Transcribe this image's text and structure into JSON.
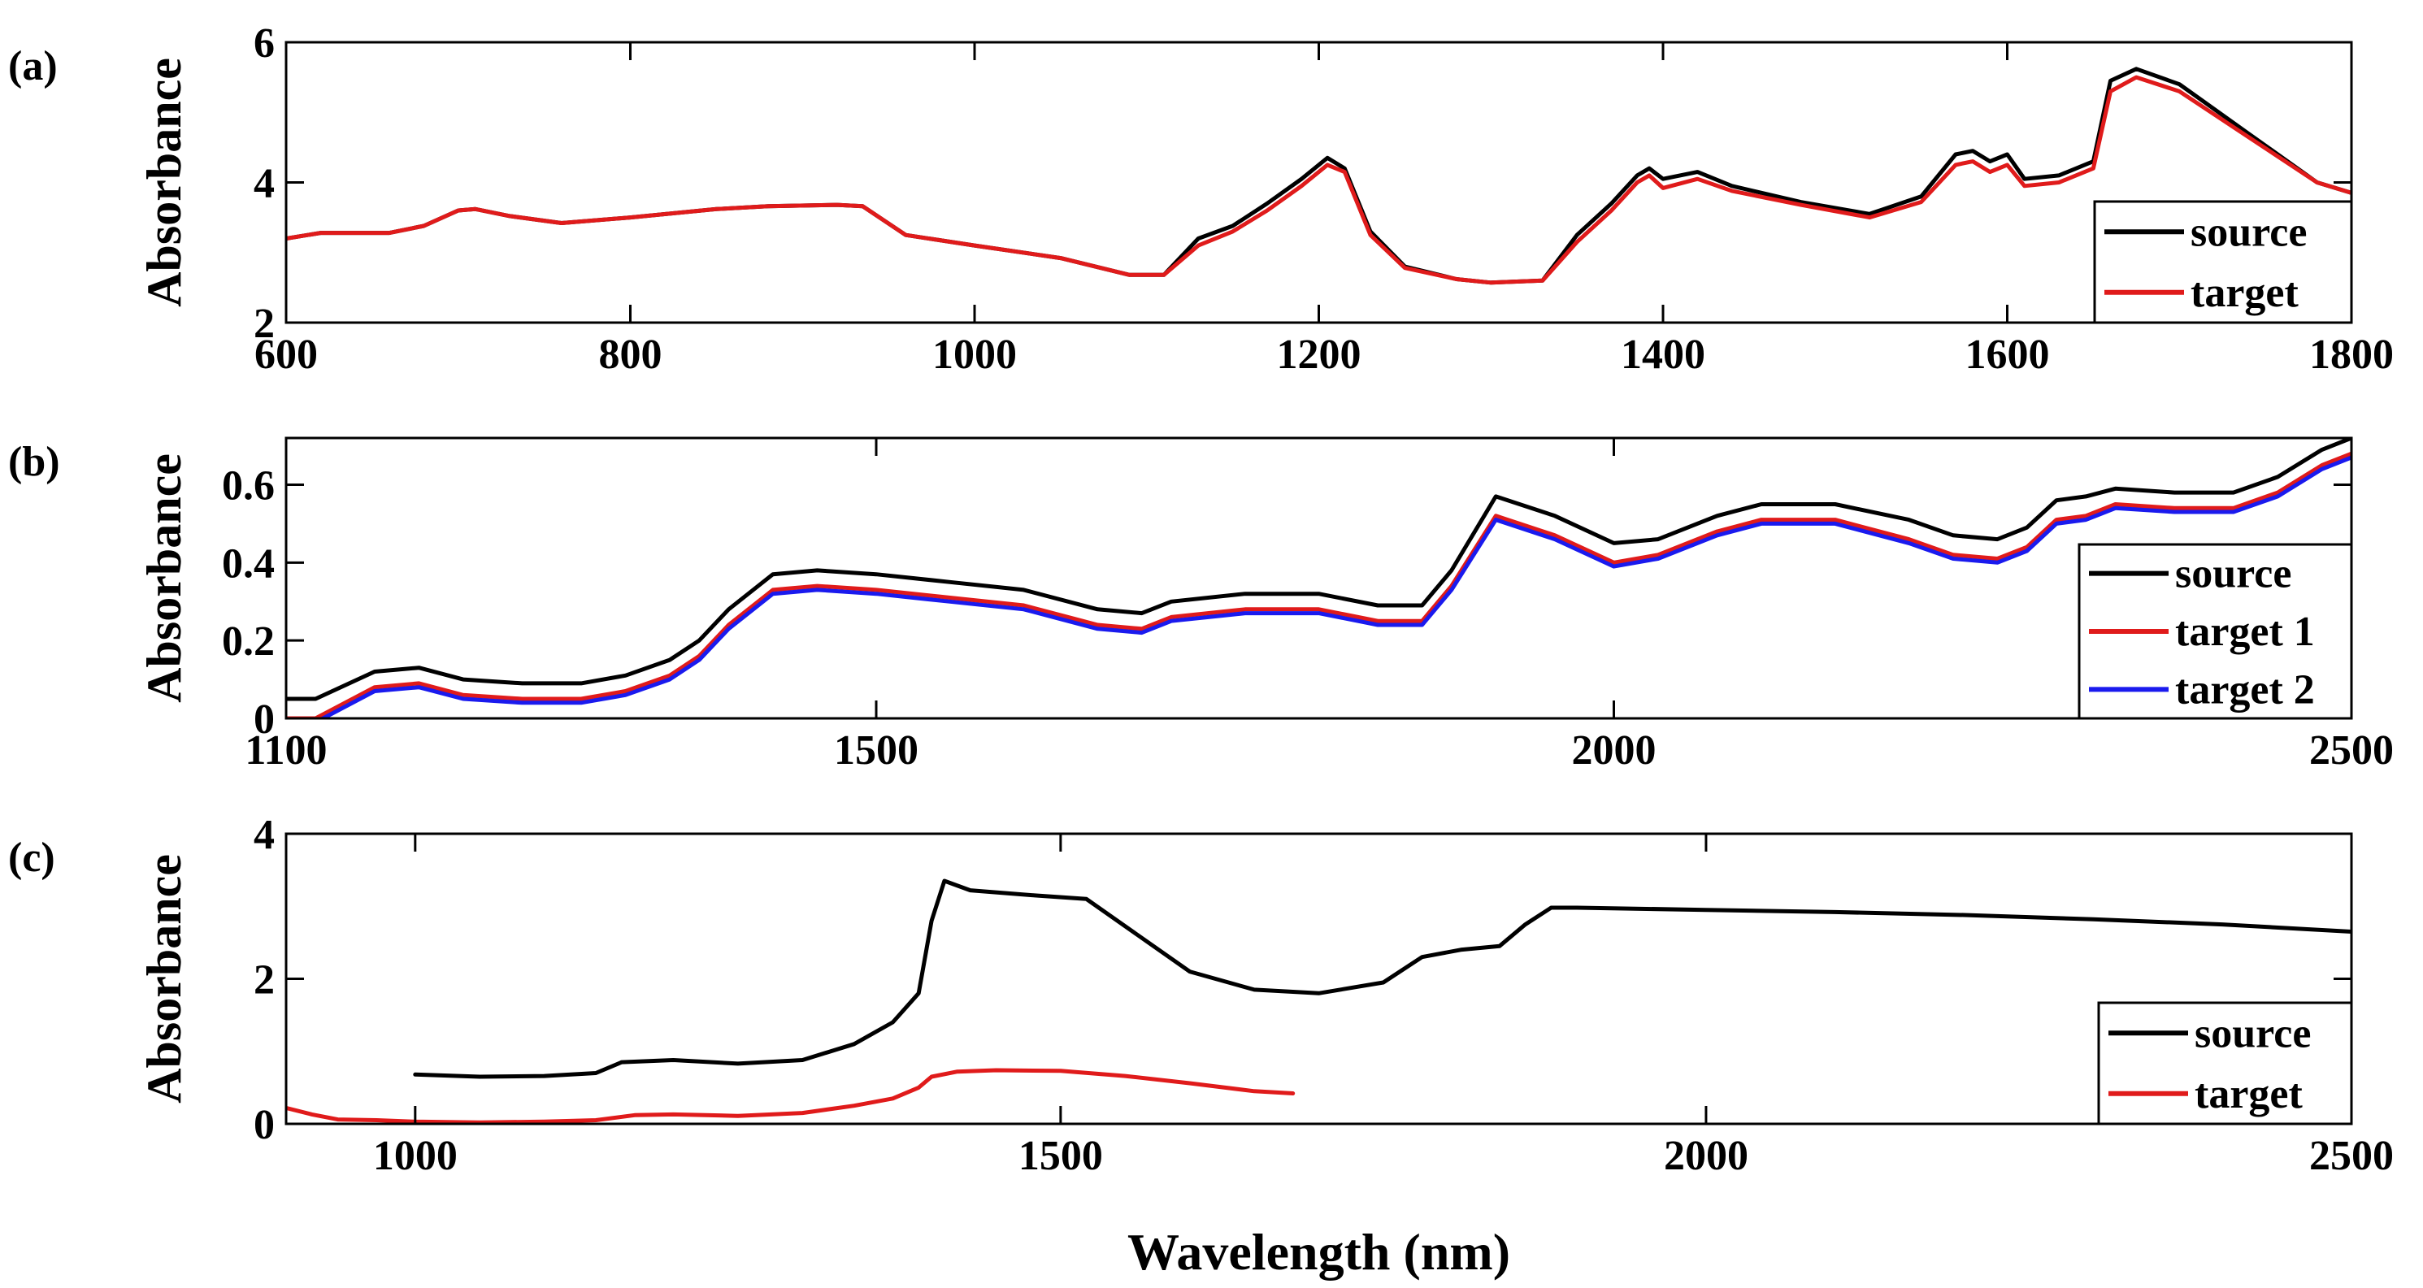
{
  "figure": {
    "xlabel": "Wavelength (nm)",
    "ylabel": "Absorbance"
  },
  "chart_data": [
    {
      "id": "a",
      "type": "line",
      "panel_label": "(a)",
      "title": "",
      "xlabel": "",
      "ylabel": "Absorbance",
      "xlim": [
        600,
        1800
      ],
      "ylim": [
        2,
        6
      ],
      "xticks": [
        600,
        800,
        1000,
        1200,
        1400,
        1600,
        1800
      ],
      "yticks": [
        2,
        4,
        6
      ],
      "legend_position": "bottom-right",
      "series": [
        {
          "name": "source",
          "color": "#000000",
          "x": [
            600,
            620,
            640,
            660,
            680,
            700,
            710,
            730,
            760,
            800,
            850,
            880,
            920,
            935,
            960,
            1000,
            1050,
            1090,
            1110,
            1130,
            1150,
            1170,
            1190,
            1205,
            1215,
            1230,
            1250,
            1280,
            1300,
            1330,
            1350,
            1370,
            1385,
            1392,
            1400,
            1420,
            1440,
            1480,
            1520,
            1550,
            1570,
            1580,
            1590,
            1600,
            1610,
            1630,
            1650,
            1660,
            1675,
            1700,
            1740,
            1780,
            1800
          ],
          "y": [
            3.2,
            3.28,
            3.28,
            3.28,
            3.38,
            3.6,
            3.62,
            3.52,
            3.42,
            3.5,
            3.62,
            3.66,
            3.68,
            3.66,
            3.25,
            3.1,
            2.92,
            2.68,
            2.68,
            3.2,
            3.38,
            3.7,
            4.05,
            4.35,
            4.2,
            3.3,
            2.8,
            2.62,
            2.57,
            2.6,
            3.25,
            3.7,
            4.1,
            4.2,
            4.05,
            4.15,
            3.95,
            3.72,
            3.55,
            3.8,
            4.4,
            4.45,
            4.3,
            4.4,
            4.05,
            4.1,
            4.3,
            5.45,
            5.62,
            5.4,
            4.7,
            4.0,
            3.85
          ]
        },
        {
          "name": "target",
          "color": "#e01b1b",
          "x": [
            600,
            620,
            640,
            660,
            680,
            700,
            710,
            730,
            760,
            800,
            850,
            880,
            920,
            935,
            960,
            1000,
            1050,
            1090,
            1110,
            1130,
            1150,
            1170,
            1190,
            1205,
            1215,
            1230,
            1250,
            1280,
            1300,
            1330,
            1350,
            1370,
            1385,
            1392,
            1400,
            1420,
            1440,
            1480,
            1520,
            1550,
            1570,
            1580,
            1590,
            1600,
            1610,
            1630,
            1650,
            1660,
            1675,
            1700,
            1740,
            1780,
            1800
          ],
          "y": [
            3.2,
            3.28,
            3.28,
            3.28,
            3.38,
            3.6,
            3.62,
            3.52,
            3.42,
            3.5,
            3.62,
            3.66,
            3.68,
            3.66,
            3.25,
            3.1,
            2.92,
            2.68,
            2.68,
            3.1,
            3.3,
            3.6,
            3.95,
            4.25,
            4.15,
            3.25,
            2.78,
            2.62,
            2.57,
            2.6,
            3.15,
            3.6,
            4.0,
            4.1,
            3.92,
            4.05,
            3.88,
            3.68,
            3.5,
            3.72,
            4.25,
            4.3,
            4.15,
            4.25,
            3.95,
            4.0,
            4.2,
            5.3,
            5.5,
            5.3,
            4.65,
            4.0,
            3.85
          ]
        }
      ]
    },
    {
      "id": "b",
      "type": "line",
      "panel_label": "(b)",
      "title": "",
      "xlabel": "",
      "ylabel": "Absorbance",
      "xlim": [
        1100,
        2500
      ],
      "ylim": [
        0,
        0.72
      ],
      "xticks": [
        1100,
        1500,
        2000,
        2500
      ],
      "yticks": [
        0,
        0.2,
        0.4,
        0.6
      ],
      "legend_position": "bottom-right",
      "series": [
        {
          "name": "source",
          "color": "#000000",
          "x": [
            1100,
            1120,
            1160,
            1190,
            1220,
            1260,
            1300,
            1330,
            1360,
            1380,
            1400,
            1430,
            1460,
            1500,
            1550,
            1600,
            1650,
            1680,
            1700,
            1750,
            1800,
            1840,
            1870,
            1890,
            1920,
            1960,
            2000,
            2030,
            2070,
            2100,
            2150,
            2200,
            2230,
            2260,
            2280,
            2300,
            2320,
            2340,
            2380,
            2420,
            2450,
            2480,
            2500
          ],
          "y": [
            0.05,
            0.05,
            0.12,
            0.13,
            0.1,
            0.09,
            0.09,
            0.11,
            0.15,
            0.2,
            0.28,
            0.37,
            0.38,
            0.37,
            0.35,
            0.33,
            0.28,
            0.27,
            0.3,
            0.32,
            0.32,
            0.29,
            0.29,
            0.38,
            0.57,
            0.52,
            0.45,
            0.46,
            0.52,
            0.55,
            0.55,
            0.51,
            0.47,
            0.46,
            0.49,
            0.56,
            0.57,
            0.59,
            0.58,
            0.58,
            0.62,
            0.69,
            0.72
          ]
        },
        {
          "name": "target 1",
          "color": "#e01b1b",
          "x": [
            1100,
            1120,
            1160,
            1190,
            1220,
            1260,
            1300,
            1330,
            1360,
            1380,
            1400,
            1430,
            1460,
            1500,
            1550,
            1600,
            1650,
            1680,
            1700,
            1750,
            1800,
            1840,
            1870,
            1890,
            1920,
            1960,
            2000,
            2030,
            2070,
            2100,
            2150,
            2200,
            2230,
            2260,
            2280,
            2300,
            2320,
            2340,
            2380,
            2420,
            2450,
            2480,
            2500
          ],
          "y": [
            0.0,
            0.0,
            0.08,
            0.09,
            0.06,
            0.05,
            0.05,
            0.07,
            0.11,
            0.16,
            0.24,
            0.33,
            0.34,
            0.33,
            0.31,
            0.29,
            0.24,
            0.23,
            0.26,
            0.28,
            0.28,
            0.25,
            0.25,
            0.34,
            0.52,
            0.47,
            0.4,
            0.42,
            0.48,
            0.51,
            0.51,
            0.46,
            0.42,
            0.41,
            0.44,
            0.51,
            0.52,
            0.55,
            0.54,
            0.54,
            0.58,
            0.65,
            0.68
          ]
        },
        {
          "name": "target 2",
          "color": "#1a1aee",
          "x": [
            1100,
            1120,
            1160,
            1190,
            1220,
            1260,
            1300,
            1330,
            1360,
            1380,
            1400,
            1430,
            1460,
            1500,
            1550,
            1600,
            1650,
            1680,
            1700,
            1750,
            1800,
            1840,
            1870,
            1890,
            1920,
            1960,
            2000,
            2030,
            2070,
            2100,
            2150,
            2200,
            2230,
            2260,
            2280,
            2300,
            2320,
            2340,
            2380,
            2420,
            2450,
            2480,
            2500
          ],
          "y": [
            -0.01,
            -0.01,
            0.07,
            0.08,
            0.05,
            0.04,
            0.04,
            0.06,
            0.1,
            0.15,
            0.23,
            0.32,
            0.33,
            0.32,
            0.3,
            0.28,
            0.23,
            0.22,
            0.25,
            0.27,
            0.27,
            0.24,
            0.24,
            0.33,
            0.51,
            0.46,
            0.39,
            0.41,
            0.47,
            0.5,
            0.5,
            0.45,
            0.41,
            0.4,
            0.43,
            0.5,
            0.51,
            0.54,
            0.53,
            0.53,
            0.57,
            0.64,
            0.67
          ]
        }
      ]
    },
    {
      "id": "c",
      "type": "line",
      "panel_label": "(c)",
      "title": "",
      "xlabel": "Wavelength (nm)",
      "ylabel": "Absorbance",
      "xlim": [
        900,
        2500
      ],
      "ylim": [
        0,
        4
      ],
      "xticks": [
        1000,
        1500,
        2000,
        2500
      ],
      "yticks": [
        0,
        2,
        4
      ],
      "legend_position": "bottom-right",
      "series": [
        {
          "name": "source",
          "color": "#000000",
          "x": [
            1000,
            1050,
            1100,
            1140,
            1160,
            1200,
            1250,
            1300,
            1340,
            1370,
            1390,
            1400,
            1410,
            1430,
            1480,
            1520,
            1560,
            1600,
            1650,
            1700,
            1750,
            1780,
            1810,
            1840,
            1860,
            1880,
            1900,
            2000,
            2100,
            2200,
            2300,
            2400,
            2500
          ],
          "y": [
            0.68,
            0.65,
            0.66,
            0.7,
            0.85,
            0.88,
            0.83,
            0.88,
            1.1,
            1.4,
            1.8,
            2.8,
            3.35,
            3.22,
            3.15,
            3.1,
            2.6,
            2.1,
            1.85,
            1.8,
            1.95,
            2.3,
            2.4,
            2.45,
            2.75,
            2.98,
            2.98,
            2.95,
            2.92,
            2.88,
            2.82,
            2.75,
            2.65
          ]
        },
        {
          "name": "target",
          "color": "#e01b1b",
          "x": [
            900,
            920,
            940,
            970,
            1000,
            1050,
            1100,
            1140,
            1170,
            1200,
            1250,
            1300,
            1340,
            1370,
            1390,
            1400,
            1420,
            1450,
            1500,
            1550,
            1600,
            1650,
            1680
          ],
          "y": [
            0.22,
            0.13,
            0.06,
            0.05,
            0.03,
            0.02,
            0.03,
            0.05,
            0.12,
            0.13,
            0.11,
            0.15,
            0.25,
            0.35,
            0.5,
            0.65,
            0.72,
            0.74,
            0.73,
            0.66,
            0.56,
            0.45,
            0.42
          ]
        }
      ]
    }
  ]
}
